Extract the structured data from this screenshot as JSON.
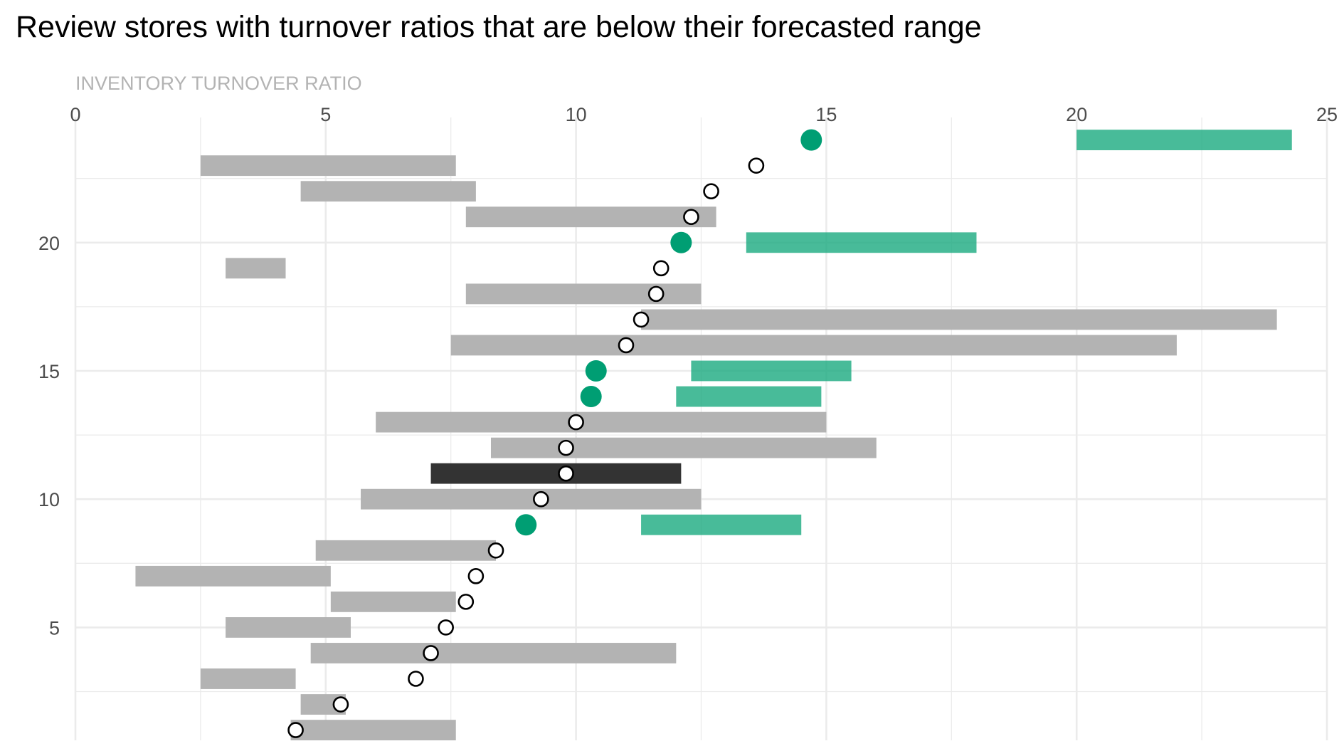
{
  "chart_data": {
    "type": "range-dot",
    "title": "Review stores with turnover ratios that are below their forecasted range",
    "xlabel": "INVENTORY TURNOVER RATIO",
    "ylabel": "",
    "xlim": [
      0,
      25
    ],
    "ylim": [
      0.6,
      24.6
    ],
    "x_ticks": [
      0,
      5,
      10,
      15,
      20,
      25
    ],
    "y_ticks": [
      5,
      10,
      15,
      20
    ],
    "grid": true,
    "x_axis_position": "top",
    "colors": {
      "normal_range": "#b3b3b3",
      "below_range": "#1aaa80",
      "below_dot": "#009e73",
      "highlight_range": "#333333",
      "normal_dot_fill": "#ffffff",
      "normal_dot_stroke": "#000000"
    },
    "stores": [
      {
        "y": 1,
        "actual": 4.4,
        "low": 4.3,
        "high": 7.6,
        "status": "normal"
      },
      {
        "y": 2,
        "actual": 5.3,
        "low": 4.5,
        "high": 5.4,
        "status": "normal"
      },
      {
        "y": 3,
        "actual": 6.8,
        "low": 2.5,
        "high": 4.4,
        "status": "normal"
      },
      {
        "y": 4,
        "actual": 7.1,
        "low": 4.7,
        "high": 12.0,
        "status": "normal"
      },
      {
        "y": 5,
        "actual": 7.4,
        "low": 3.0,
        "high": 5.5,
        "status": "normal"
      },
      {
        "y": 6,
        "actual": 7.8,
        "low": 5.1,
        "high": 7.6,
        "status": "normal"
      },
      {
        "y": 7,
        "actual": 8.0,
        "low": 1.2,
        "high": 5.1,
        "status": "normal"
      },
      {
        "y": 8,
        "actual": 8.4,
        "low": 4.8,
        "high": 8.4,
        "status": "normal"
      },
      {
        "y": 9,
        "actual": 9.0,
        "low": 11.3,
        "high": 14.5,
        "status": "below"
      },
      {
        "y": 10,
        "actual": 9.3,
        "low": 5.7,
        "high": 12.5,
        "status": "normal"
      },
      {
        "y": 11,
        "actual": 9.8,
        "low": 7.1,
        "high": 12.1,
        "status": "highlight"
      },
      {
        "y": 12,
        "actual": 9.8,
        "low": 8.3,
        "high": 16.0,
        "status": "normal"
      },
      {
        "y": 13,
        "actual": 10.0,
        "low": 6.0,
        "high": 15.0,
        "status": "normal"
      },
      {
        "y": 14,
        "actual": 10.3,
        "low": 12.0,
        "high": 14.9,
        "status": "below"
      },
      {
        "y": 15,
        "actual": 10.4,
        "low": 12.3,
        "high": 15.5,
        "status": "below"
      },
      {
        "y": 16,
        "actual": 11.0,
        "low": 7.5,
        "high": 22.0,
        "status": "normal"
      },
      {
        "y": 17,
        "actual": 11.3,
        "low": 11.3,
        "high": 24.0,
        "status": "normal"
      },
      {
        "y": 18,
        "actual": 11.6,
        "low": 7.8,
        "high": 12.5,
        "status": "normal"
      },
      {
        "y": 19,
        "actual": 11.7,
        "low": 3.0,
        "high": 4.2,
        "status": "normal"
      },
      {
        "y": 20,
        "actual": 12.1,
        "low": 13.4,
        "high": 18.0,
        "status": "below"
      },
      {
        "y": 21,
        "actual": 12.3,
        "low": 7.8,
        "high": 12.8,
        "status": "normal"
      },
      {
        "y": 22,
        "actual": 12.7,
        "low": 4.5,
        "high": 8.0,
        "status": "normal"
      },
      {
        "y": 23,
        "actual": 13.6,
        "low": 2.5,
        "high": 7.6,
        "status": "normal"
      },
      {
        "y": 24,
        "actual": 14.7,
        "low": 20.0,
        "high": 24.3,
        "status": "below"
      }
    ]
  }
}
